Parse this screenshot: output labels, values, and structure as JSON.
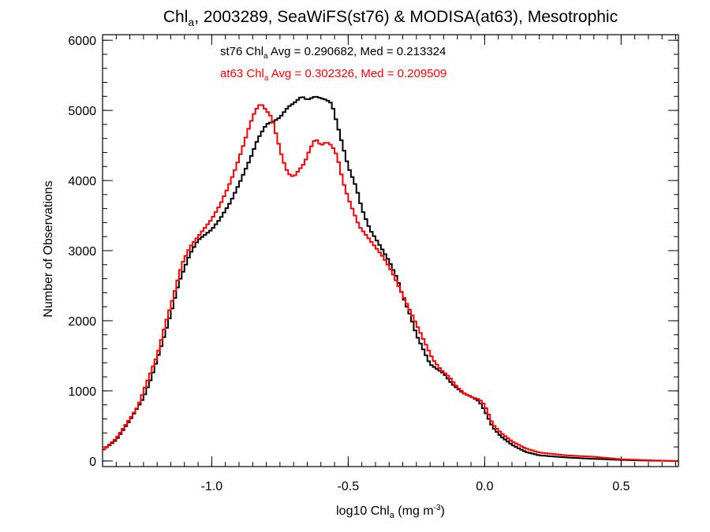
{
  "chart_data": {
    "type": "line",
    "title": {
      "pre": "Chl",
      "sub": "a",
      "post": ", 2003289, SeaWiFS(st76) & MODISA(at63), Mesotrophic"
    },
    "xlabel": {
      "pre": "log10 Chl",
      "sub": "a",
      "mid": " (mg m",
      "sup": "-3",
      "post": ")"
    },
    "ylabel": "Number of Observations",
    "xlim": [
      -1.4,
      0.71
    ],
    "ylim": [
      -80,
      6080
    ],
    "x_ticks": [
      {
        "v": -1.0,
        "label": "-1.0"
      },
      {
        "v": -0.5,
        "label": "-0.5"
      },
      {
        "v": 0.0,
        "label": "0.0"
      },
      {
        "v": 0.5,
        "label": "0.5"
      }
    ],
    "y_ticks": [
      {
        "v": 0,
        "label": "0"
      },
      {
        "v": 1000,
        "label": "1000"
      },
      {
        "v": 2000,
        "label": "2000"
      },
      {
        "v": 3000,
        "label": "3000"
      },
      {
        "v": 4000,
        "label": "4000"
      },
      {
        "v": 5000,
        "label": "5000"
      },
      {
        "v": 6000,
        "label": "6000"
      }
    ],
    "x_minor_step": 0.05,
    "y_minor_step": 200,
    "annotations": [
      {
        "pre": "st76 Chl",
        "sub": "a",
        "post": " Avg = 0.290682, Med = 0.213324",
        "color": "#000000"
      },
      {
        "pre": "at63 Chl",
        "sub": "a",
        "post": " Avg = 0.302326, Med = 0.209509",
        "color": "#ff0000"
      }
    ],
    "series": [
      {
        "color": "#000000",
        "points": [
          [
            -1.4,
            150
          ],
          [
            -1.35,
            300
          ],
          [
            -1.3,
            580
          ],
          [
            -1.25,
            900
          ],
          [
            -1.22,
            1200
          ],
          [
            -1.18,
            1700
          ],
          [
            -1.15,
            2100
          ],
          [
            -1.12,
            2550
          ],
          [
            -1.08,
            2950
          ],
          [
            -1.05,
            3150
          ],
          [
            -1.0,
            3300
          ],
          [
            -0.97,
            3450
          ],
          [
            -0.93,
            3700
          ],
          [
            -0.9,
            3950
          ],
          [
            -0.86,
            4300
          ],
          [
            -0.83,
            4600
          ],
          [
            -0.8,
            4800
          ],
          [
            -0.77,
            4850
          ],
          [
            -0.75,
            4900
          ],
          [
            -0.72,
            5050
          ],
          [
            -0.7,
            5100
          ],
          [
            -0.67,
            5200
          ],
          [
            -0.65,
            5150
          ],
          [
            -0.62,
            5200
          ],
          [
            -0.58,
            5150
          ],
          [
            -0.56,
            5100
          ],
          [
            -0.54,
            4800
          ],
          [
            -0.52,
            4500
          ],
          [
            -0.5,
            4200
          ],
          [
            -0.47,
            3900
          ],
          [
            -0.45,
            3600
          ],
          [
            -0.42,
            3300
          ],
          [
            -0.38,
            3050
          ],
          [
            -0.35,
            2850
          ],
          [
            -0.32,
            2600
          ],
          [
            -0.3,
            2350
          ],
          [
            -0.27,
            2050
          ],
          [
            -0.25,
            1800
          ],
          [
            -0.22,
            1550
          ],
          [
            -0.2,
            1380
          ],
          [
            -0.17,
            1300
          ],
          [
            -0.15,
            1250
          ],
          [
            -0.12,
            1100
          ],
          [
            -0.08,
            970
          ],
          [
            -0.05,
            920
          ],
          [
            -0.02,
            850
          ],
          [
            0.0,
            720
          ],
          [
            0.03,
            480
          ],
          [
            0.06,
            350
          ],
          [
            0.1,
            230
          ],
          [
            0.15,
            130
          ],
          [
            0.2,
            80
          ],
          [
            0.3,
            50
          ],
          [
            0.4,
            30
          ],
          [
            0.5,
            15
          ],
          [
            0.6,
            5
          ],
          [
            0.7,
            0
          ]
        ]
      },
      {
        "color": "#ff0000",
        "points": [
          [
            -1.4,
            150
          ],
          [
            -1.35,
            320
          ],
          [
            -1.3,
            600
          ],
          [
            -1.27,
            780
          ],
          [
            -1.24,
            1100
          ],
          [
            -1.2,
            1500
          ],
          [
            -1.17,
            1950
          ],
          [
            -1.14,
            2350
          ],
          [
            -1.11,
            2800
          ],
          [
            -1.08,
            3050
          ],
          [
            -1.05,
            3200
          ],
          [
            -1.02,
            3350
          ],
          [
            -1.0,
            3450
          ],
          [
            -0.97,
            3650
          ],
          [
            -0.94,
            3900
          ],
          [
            -0.91,
            4200
          ],
          [
            -0.88,
            4550
          ],
          [
            -0.86,
            4800
          ],
          [
            -0.84,
            5000
          ],
          [
            -0.82,
            5100
          ],
          [
            -0.8,
            5000
          ],
          [
            -0.78,
            4900
          ],
          [
            -0.76,
            4600
          ],
          [
            -0.74,
            4300
          ],
          [
            -0.72,
            4100
          ],
          [
            -0.7,
            4050
          ],
          [
            -0.68,
            4150
          ],
          [
            -0.66,
            4250
          ],
          [
            -0.64,
            4450
          ],
          [
            -0.62,
            4600
          ],
          [
            -0.6,
            4500
          ],
          [
            -0.58,
            4550
          ],
          [
            -0.56,
            4500
          ],
          [
            -0.54,
            4350
          ],
          [
            -0.52,
            4000
          ],
          [
            -0.5,
            3750
          ],
          [
            -0.48,
            3550
          ],
          [
            -0.46,
            3350
          ],
          [
            -0.43,
            3200
          ],
          [
            -0.4,
            3050
          ],
          [
            -0.37,
            2900
          ],
          [
            -0.34,
            2700
          ],
          [
            -0.31,
            2450
          ],
          [
            -0.28,
            2200
          ],
          [
            -0.25,
            1950
          ],
          [
            -0.22,
            1700
          ],
          [
            -0.19,
            1450
          ],
          [
            -0.16,
            1300
          ],
          [
            -0.13,
            1200
          ],
          [
            -0.1,
            1050
          ],
          [
            -0.07,
            950
          ],
          [
            -0.04,
            900
          ],
          [
            -0.02,
            880
          ],
          [
            0.0,
            800
          ],
          [
            0.03,
            520
          ],
          [
            0.06,
            400
          ],
          [
            0.1,
            280
          ],
          [
            0.15,
            180
          ],
          [
            0.2,
            120
          ],
          [
            0.3,
            80
          ],
          [
            0.4,
            60
          ],
          [
            0.5,
            25
          ],
          [
            0.6,
            10
          ],
          [
            0.7,
            0
          ]
        ]
      }
    ]
  }
}
